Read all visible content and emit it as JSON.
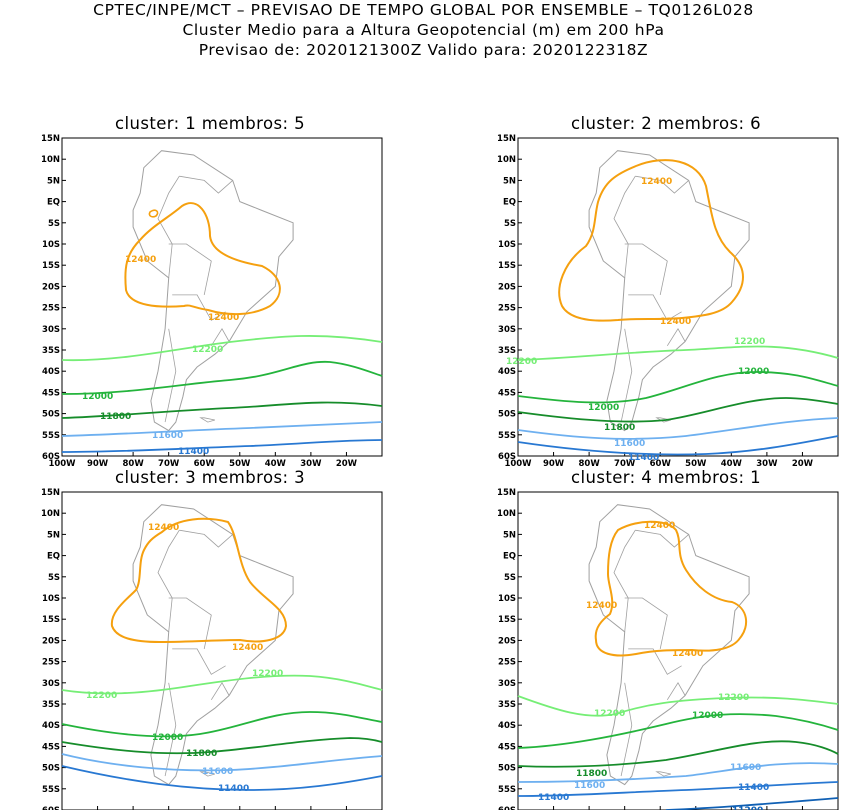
{
  "header": {
    "line1": "CPTEC/INPE/MCT – PREVISAO DE TEMPO GLOBAL POR ENSEMBLE – TQ0126L028",
    "line2": "Cluster Medio para a Altura Geopotencial (m) em 200 hPa",
    "line3": "Previsao de: 2020121300Z    Valido para: 2020122318Z"
  },
  "axes": {
    "lat_labels": [
      "15N",
      "10N",
      "5N",
      "EQ",
      "5S",
      "10S",
      "15S",
      "20S",
      "25S",
      "30S",
      "35S",
      "40S",
      "45S",
      "50S",
      "55S",
      "60S"
    ],
    "lon_labels": [
      "100W",
      "90W",
      "80W",
      "70W",
      "60W",
      "50W",
      "40W",
      "30W",
      "20W"
    ]
  },
  "colors": {
    "c12400": "#f5a00f",
    "c12200": "#76ee76",
    "c12000": "#24b43c",
    "c11800": "#168c2a",
    "c11600": "#6eb0f0",
    "c11400": "#2878d2",
    "c11200": "#1060b4",
    "land": "#a0a0a0"
  },
  "chart_data": {
    "type": "contour-map",
    "variable": "Altura Geopotencial (m) em 200 hPa",
    "lat_range": [
      -60,
      15
    ],
    "lon_range": [
      -100,
      -10
    ],
    "panels": [
      {
        "title": "cluster: 1   membros: 5",
        "labels": {
          "c12400a": "12400",
          "c12400b": "12400",
          "c12200": "12200",
          "c12000": "12000",
          "c11800": "11800",
          "c11600": "11600",
          "c11400": "11400"
        }
      },
      {
        "title": "cluster: 2   membros: 6",
        "labels": {
          "c12400a": "12400",
          "c12400b": "12400",
          "c12200a": "12200",
          "c12200b": "12200",
          "c12000a": "12000",
          "c12000b": "12000",
          "c11800": "11800",
          "c11600": "11600",
          "c11400": "11400"
        }
      },
      {
        "title": "cluster: 3   membros: 3",
        "labels": {
          "c12400a": "12400",
          "c12400b": "12400",
          "c12200a": "12200",
          "c12200b": "12200",
          "c12000": "12000",
          "c11800": "11800",
          "c11600": "11600",
          "c11400": "11400"
        }
      },
      {
        "title": "cluster: 4   membros: 1",
        "labels": {
          "c12400a": "12400",
          "c12400b": "12400",
          "c12400c": "12400",
          "c12200a": "12200",
          "c12200b": "12200",
          "c12000": "12000",
          "c11800": "11800",
          "c11600a": "11600",
          "c11600b": "11600",
          "c11400a": "11400",
          "c11400b": "11400",
          "c11200": "11200"
        }
      }
    ]
  }
}
